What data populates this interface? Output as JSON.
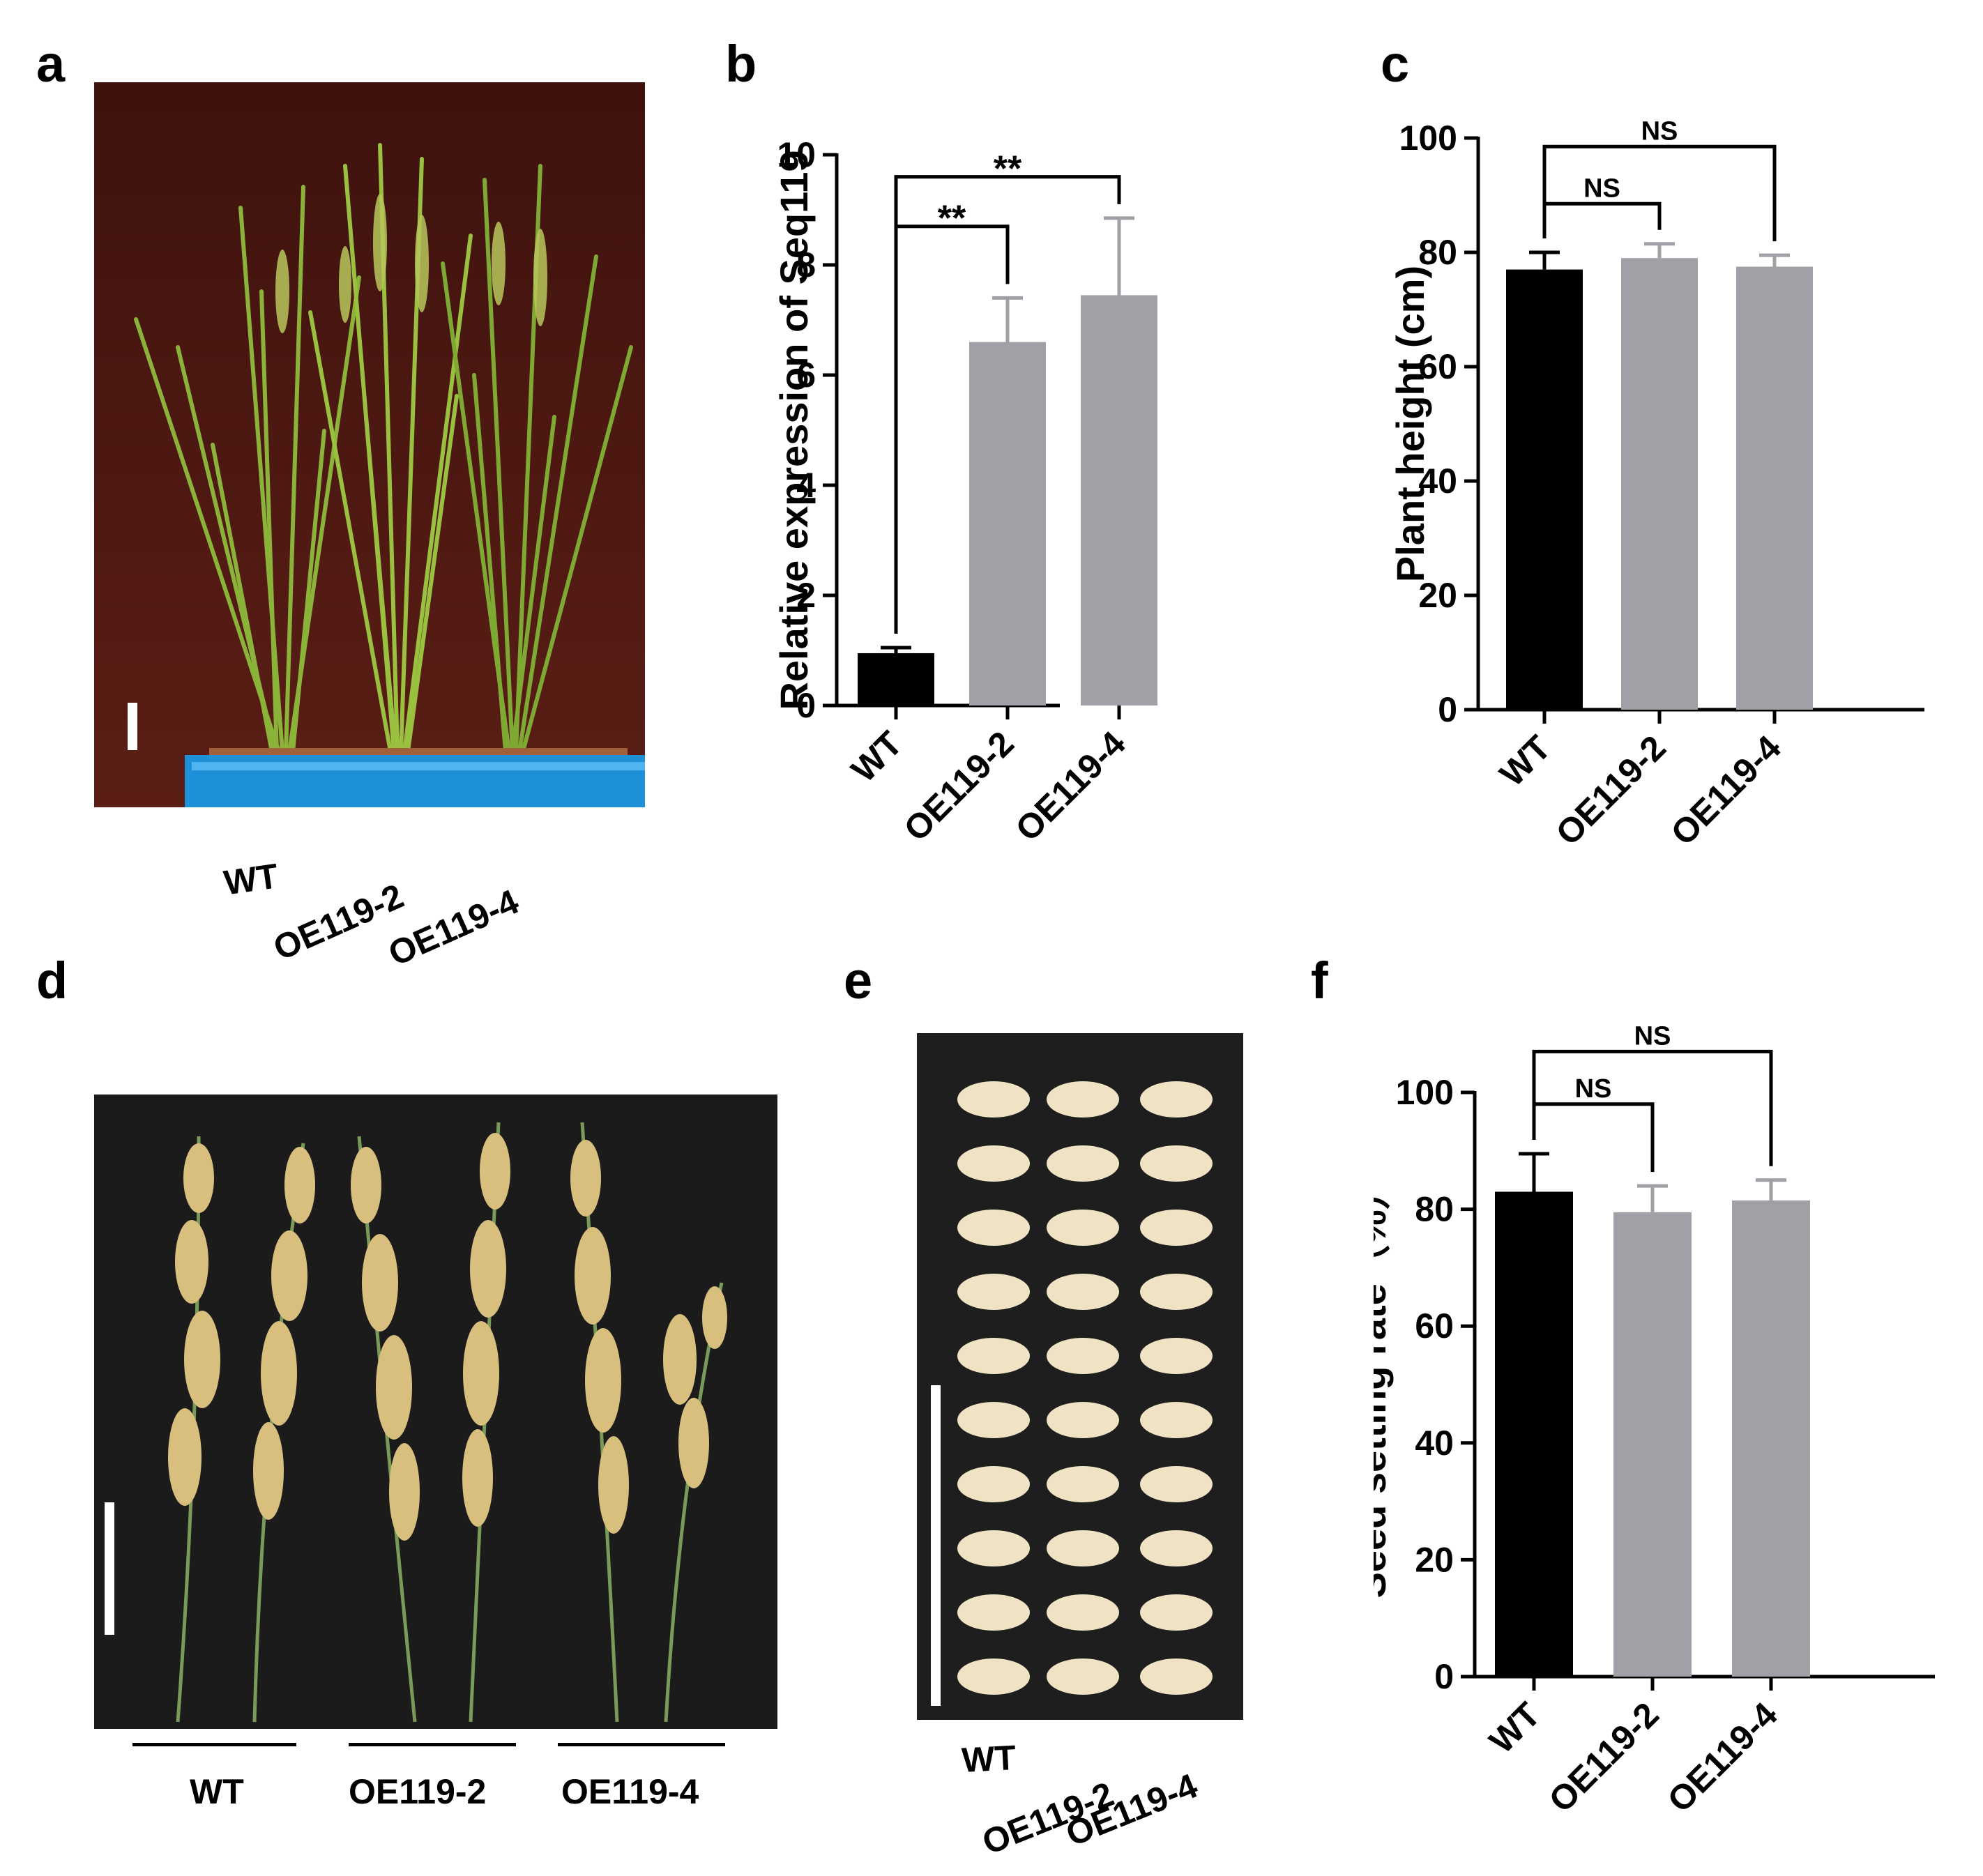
{
  "panels": {
    "a": {
      "letter": "a",
      "labels": [
        "WT",
        "OE119-2",
        "OE119-4"
      ],
      "colors": {
        "background": "#4a1712",
        "tray": "#1e90d8",
        "leaf": "#7fa832"
      }
    },
    "d": {
      "letter": "d",
      "labels": [
        "WT",
        "OE119-2",
        "OE119-4"
      ],
      "colors": {
        "background": "#1a1a1a",
        "grain": "#d8bf7e"
      }
    },
    "e": {
      "letter": "e",
      "labels": [
        "WT",
        "OE119-2",
        "OE119-4"
      ],
      "grain_rows": 10,
      "colors": {
        "background": "#1c1c1c",
        "grain": "#efe3c4"
      }
    }
  },
  "chart_data": [
    {
      "id": "b",
      "letter": "b",
      "type": "bar",
      "categories": [
        "WT",
        "OE119-2",
        "OE119-4"
      ],
      "values": [
        0.95,
        6.6,
        7.45
      ],
      "errors": [
        0.1,
        0.8,
        1.4
      ],
      "bar_colors": [
        "#000000",
        "#a0a0a6",
        "#a0a0a6"
      ],
      "ylabel": "Relative expression of Seq119",
      "ylim": [
        0,
        10
      ],
      "yticks": [
        0,
        2,
        4,
        6,
        8,
        10
      ],
      "significance": [
        {
          "from": 0,
          "to": 1,
          "label": "**",
          "level": 8.7
        },
        {
          "from": 0,
          "to": 2,
          "label": "**",
          "level": 9.6
        }
      ]
    },
    {
      "id": "c",
      "letter": "c",
      "type": "bar",
      "categories": [
        "WT",
        "OE119-2",
        "OE119-4"
      ],
      "values": [
        77,
        79,
        77.5
      ],
      "errors": [
        3,
        2.5,
        2
      ],
      "bar_colors": [
        "#000000",
        "#a0a0a6",
        "#a0a0a6"
      ],
      "ylabel": "Plant height (cm)",
      "ylim": [
        0,
        100
      ],
      "yticks": [
        0,
        20,
        40,
        60,
        80,
        100
      ],
      "significance": [
        {
          "from": 0,
          "to": 1,
          "label": "NS",
          "level": 88.5
        },
        {
          "from": 0,
          "to": 2,
          "label": "NS",
          "level": 98.5
        }
      ]
    },
    {
      "id": "f",
      "letter": "f",
      "type": "bar",
      "categories": [
        "WT",
        "OE119-2",
        "OE119-4"
      ],
      "values": [
        83,
        79.5,
        81.5
      ],
      "errors": [
        6.5,
        4.5,
        3.5
      ],
      "bar_colors": [
        "#000000",
        "#a0a0a6",
        "#a0a0a6"
      ],
      "ylabel": "Seed setting rate（%）",
      "ylim": [
        0,
        100
      ],
      "yticks": [
        0,
        20,
        40,
        60,
        80,
        100
      ],
      "significance": [
        {
          "from": 0,
          "to": 1,
          "label": "NS",
          "level": 98
        },
        {
          "from": 0,
          "to": 2,
          "label": "NS",
          "level": 107
        }
      ]
    }
  ]
}
